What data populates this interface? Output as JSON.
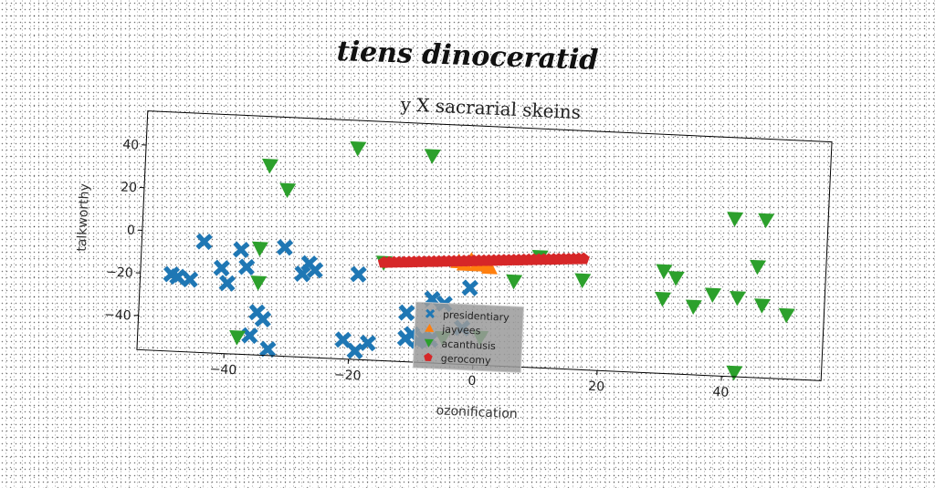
{
  "suptitle": "tiens dinoceratid",
  "chart_data": {
    "type": "scatter",
    "title": "y X sacrarial skeins",
    "xlabel": "ozonification",
    "ylabel": "talkworthy",
    "xlim": [
      -54,
      56
    ],
    "ylim": [
      -56,
      56
    ],
    "xticks": [
      -40,
      -20,
      0,
      20,
      40
    ],
    "yticks": [
      -40,
      -20,
      0,
      20,
      40
    ],
    "grid": false,
    "legend_position": "lower-center",
    "series": [
      {
        "name": "presidentiary",
        "marker": "X",
        "color": "#1f77b4",
        "points": [
          [
            -49,
            -20
          ],
          [
            -48,
            -21
          ],
          [
            -46,
            -22
          ],
          [
            -44,
            -4
          ],
          [
            -41,
            -16
          ],
          [
            -40,
            -23
          ],
          [
            -38,
            -7
          ],
          [
            -37,
            -15
          ],
          [
            -36,
            -47
          ],
          [
            -35,
            -36
          ],
          [
            -34,
            -39
          ],
          [
            -33,
            -53
          ],
          [
            -31,
            -5
          ],
          [
            -28,
            -17
          ],
          [
            -27,
            -12
          ],
          [
            -26,
            -15
          ],
          [
            -21,
            -47
          ],
          [
            -19,
            -52
          ],
          [
            -19,
            -16
          ],
          [
            -17,
            -48
          ],
          [
            -11,
            -33
          ],
          [
            -11,
            -45
          ],
          [
            -10,
            -43
          ],
          [
            -9,
            -46
          ],
          [
            -8,
            -45
          ],
          [
            -7,
            -26
          ],
          [
            -7,
            -45
          ],
          [
            -5,
            -28
          ],
          [
            -1,
            -20
          ],
          [
            -2,
            -39
          ]
        ]
      },
      {
        "name": "jayvees",
        "marker": "^",
        "color": "#ff7f0e",
        "points": [
          [
            -3,
            -8
          ],
          [
            -2,
            -9
          ],
          [
            -1,
            -7
          ],
          [
            0,
            -9
          ],
          [
            1,
            -8
          ],
          [
            2,
            -10
          ]
        ]
      },
      {
        "name": "acanthusis",
        "marker": "v",
        "color": "#2ca02c",
        "points": [
          [
            -20,
            43
          ],
          [
            -8,
            41
          ],
          [
            -34,
            33
          ],
          [
            -31,
            22
          ],
          [
            -35,
            -6
          ],
          [
            -35,
            -22
          ],
          [
            -38,
            -48
          ],
          [
            -15,
            -10
          ],
          [
            -5,
            -44
          ],
          [
            1,
            -43
          ],
          [
            6,
            -16
          ],
          [
            10,
            -4
          ],
          [
            17,
            -14
          ],
          [
            30,
            -8
          ],
          [
            32,
            -11
          ],
          [
            30,
            -21
          ],
          [
            35,
            -24
          ],
          [
            38,
            -18
          ],
          [
            41,
            18
          ],
          [
            42,
            -19
          ],
          [
            45,
            -4
          ],
          [
            46,
            18
          ],
          [
            46,
            -22
          ],
          [
            50,
            -26
          ],
          [
            42,
            -54
          ]
        ]
      },
      {
        "name": "gerocomy",
        "marker": "p",
        "color": "#d62728",
        "line": {
          "x_start": -15,
          "y_start": -10,
          "x_end": 17,
          "y_end": -4
        }
      }
    ]
  }
}
